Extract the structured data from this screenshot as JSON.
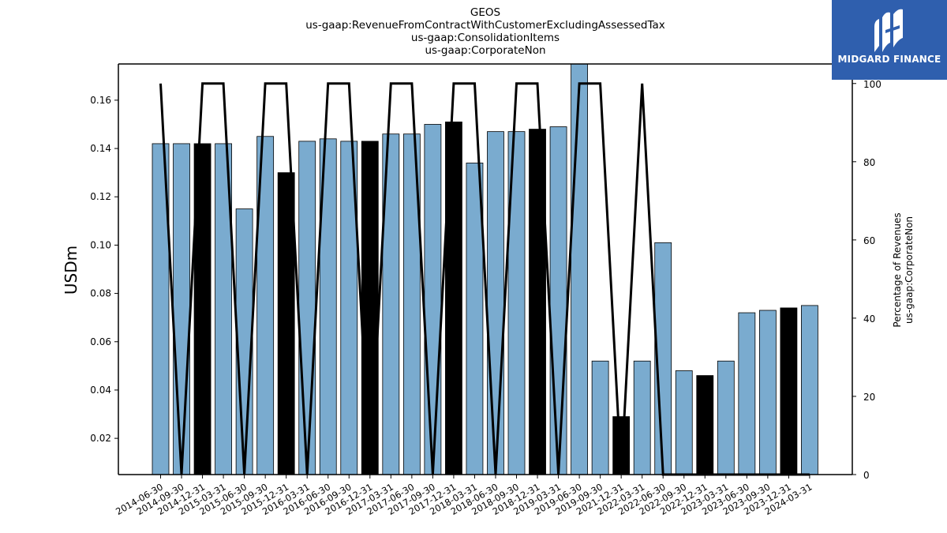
{
  "chart_data": {
    "type": "bar",
    "title_lines": [
      "GEOS",
      "us-gaap:RevenueFromContractWithCustomerExcludingAssessedTax",
      "us-gaap:ConsolidationItems",
      "us-gaap:CorporateNon"
    ],
    "ylabel": "USDm",
    "ylabel_right_lines": [
      "Percentage of Revenues",
      "us-gaap:CorporateNon"
    ],
    "categories": [
      "2014-06-30",
      "2014-09-30",
      "2014-12-31",
      "2015-03-31",
      "2015-06-30",
      "2015-09-30",
      "2015-12-31",
      "2016-03-31",
      "2016-06-30",
      "2016-09-30",
      "2016-12-31",
      "2017-03-31",
      "2017-06-30",
      "2017-09-30",
      "2017-12-31",
      "2018-03-31",
      "2018-06-30",
      "2018-09-30",
      "2018-12-31",
      "2019-03-31",
      "2019-06-30",
      "2019-09-30",
      "2021-12-31",
      "2022-03-31",
      "2022-06-30",
      "2022-09-30",
      "2022-12-31",
      "2023-03-31",
      "2023-06-30",
      "2023-09-30",
      "2023-12-31",
      "2024-03-31"
    ],
    "series": [
      {
        "values": [
          0.142,
          0.142,
          0.142,
          0.142,
          0.115,
          0.145,
          0.13,
          0.143,
          0.144,
          0.143,
          0.143,
          0.146,
          0.146,
          0.15,
          0.151,
          0.134,
          0.147,
          0.147,
          0.148,
          0.149,
          0.175,
          0.052,
          0.029,
          0.052,
          0.101,
          0.048,
          0.046,
          0.052,
          0.072,
          0.073,
          0.074,
          0.075
        ],
        "bar_colors": [
          "#7aabcf",
          "#7aabcf",
          "#000000",
          "#7aabcf",
          "#7aabcf",
          "#7aabcf",
          "#000000",
          "#7aabcf",
          "#7aabcf",
          "#7aabcf",
          "#000000",
          "#7aabcf",
          "#7aabcf",
          "#7aabcf",
          "#000000",
          "#7aabcf",
          "#7aabcf",
          "#7aabcf",
          "#000000",
          "#7aabcf",
          "#7aabcf",
          "#7aabcf",
          "#000000",
          "#7aabcf",
          "#7aabcf",
          "#7aabcf",
          "#000000",
          "#7aabcf",
          "#7aabcf",
          "#7aabcf",
          "#000000",
          "#7aabcf"
        ]
      },
      {
        "axis": "right",
        "type": "line",
        "color": "#000000",
        "values": [
          100,
          0,
          100,
          100,
          0,
          100,
          100,
          0,
          100,
          100,
          0,
          100,
          100,
          0,
          100,
          100,
          0,
          100,
          100,
          0,
          100,
          100,
          0,
          100,
          0,
          0,
          0,
          0,
          0,
          0,
          0,
          0
        ]
      }
    ],
    "ylim": [
      0.005,
      0.175
    ],
    "yticks": [
      "0.02",
      "0.04",
      "0.06",
      "0.08",
      "0.10",
      "0.12",
      "0.14",
      "0.16"
    ],
    "y2lim": [
      0,
      105
    ],
    "y2ticks": [
      "0",
      "20",
      "40",
      "60",
      "80",
      "100"
    ]
  },
  "logo": {
    "text": "MIDGARD FINANCE"
  }
}
